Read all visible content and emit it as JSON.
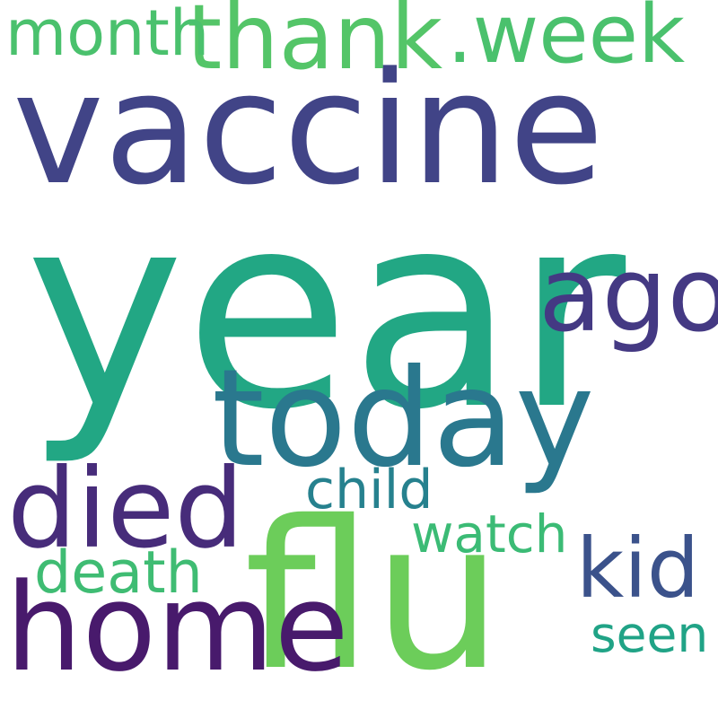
{
  "words": [
    {
      "id": "year",
      "text": "year",
      "color": "#22a784"
    },
    {
      "id": "vaccine",
      "text": "vaccine",
      "color": "#414487"
    },
    {
      "id": "today",
      "text": "today",
      "color": "#2a788e"
    },
    {
      "id": "flu",
      "text": "flu",
      "color": "#6ccd5a"
    },
    {
      "id": "home",
      "text": "home",
      "color": "#481a6c"
    },
    {
      "id": "died",
      "text": "died",
      "color": "#472c7a"
    },
    {
      "id": "thank",
      "text": "thank",
      "color": "#54c568"
    },
    {
      "id": "week",
      "text": ".week",
      "color": "#4ac16d"
    },
    {
      "id": "month",
      "text": "month",
      "color": "#4ac16d"
    },
    {
      "id": "ago",
      "text": "ago",
      "color": "#443983"
    },
    {
      "id": "kid",
      "text": "kid",
      "color": "#3b528b"
    },
    {
      "id": "child",
      "text": "child",
      "color": "#26818e"
    },
    {
      "id": "watch",
      "text": "watch",
      "color": "#3bbb75"
    },
    {
      "id": "death",
      "text": "death",
      "color": "#3fbc73"
    },
    {
      "id": "seen",
      "text": "seen",
      "color": "#20a386"
    }
  ]
}
